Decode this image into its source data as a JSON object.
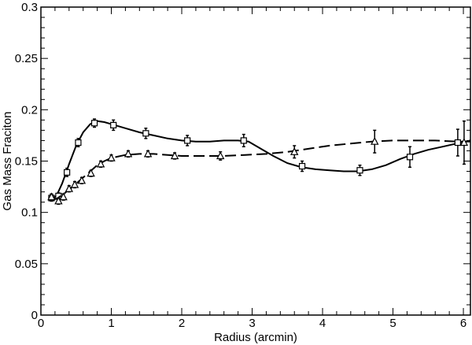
{
  "chart_data": {
    "type": "scatter",
    "title": "",
    "xlabel": "Radius (arcmin)",
    "ylabel": "Gas Mass Fraciton",
    "xlim": [
      0,
      6.1
    ],
    "ylim": [
      0,
      0.3
    ],
    "xticks": [
      "0",
      "1",
      "2",
      "3",
      "4",
      "5",
      "6"
    ],
    "yticks": [
      "0",
      "0.05",
      "0.1",
      "0.15",
      "0.2",
      "0.25",
      "0.3"
    ],
    "grid": false,
    "legend": "none",
    "series": [
      {
        "marker": "square",
        "line_style": "solid",
        "points": [
          {
            "x": 0.15,
            "y": 0.114,
            "err": 0.003
          },
          {
            "x": 0.25,
            "y": 0.116,
            "err": 0.003
          },
          {
            "x": 0.37,
            "y": 0.139,
            "err": 0.004
          },
          {
            "x": 0.53,
            "y": 0.168,
            "err": 0.004
          },
          {
            "x": 0.76,
            "y": 0.187,
            "err": 0.004
          },
          {
            "x": 1.03,
            "y": 0.185,
            "err": 0.005
          },
          {
            "x": 1.49,
            "y": 0.177,
            "err": 0.005
          },
          {
            "x": 2.08,
            "y": 0.17,
            "err": 0.005
          },
          {
            "x": 2.88,
            "y": 0.17,
            "err": 0.006
          },
          {
            "x": 3.71,
            "y": 0.145,
            "err": 0.005
          },
          {
            "x": 4.53,
            "y": 0.141,
            "err": 0.005
          },
          {
            "x": 5.24,
            "y": 0.154,
            "err": 0.01
          },
          {
            "x": 5.92,
            "y": 0.168,
            "err": 0.013
          }
        ],
        "curve": [
          [
            0.14,
            0.113
          ],
          [
            0.22,
            0.116
          ],
          [
            0.3,
            0.128
          ],
          [
            0.4,
            0.147
          ],
          [
            0.5,
            0.165
          ],
          [
            0.6,
            0.178
          ],
          [
            0.7,
            0.186
          ],
          [
            0.8,
            0.189
          ],
          [
            0.9,
            0.188
          ],
          [
            1.0,
            0.186
          ],
          [
            1.2,
            0.182
          ],
          [
            1.4,
            0.178
          ],
          [
            1.6,
            0.175
          ],
          [
            1.8,
            0.172
          ],
          [
            2.0,
            0.17
          ],
          [
            2.2,
            0.169
          ],
          [
            2.4,
            0.169
          ],
          [
            2.6,
            0.17
          ],
          [
            2.8,
            0.17
          ],
          [
            2.95,
            0.169
          ],
          [
            3.1,
            0.163
          ],
          [
            3.3,
            0.155
          ],
          [
            3.5,
            0.148
          ],
          [
            3.7,
            0.144
          ],
          [
            3.9,
            0.142
          ],
          [
            4.1,
            0.141
          ],
          [
            4.3,
            0.14
          ],
          [
            4.5,
            0.14
          ],
          [
            4.7,
            0.142
          ],
          [
            4.9,
            0.146
          ],
          [
            5.1,
            0.152
          ],
          [
            5.3,
            0.157
          ],
          [
            5.5,
            0.161
          ],
          [
            5.7,
            0.164
          ],
          [
            5.9,
            0.167
          ],
          [
            6.1,
            0.17
          ]
        ]
      },
      {
        "marker": "triangle",
        "line_style": "dashed",
        "points": [
          {
            "x": 0.15,
            "y": 0.115,
            "err": 0.003
          },
          {
            "x": 0.25,
            "y": 0.111,
            "err": 0.003
          },
          {
            "x": 0.32,
            "y": 0.115,
            "err": 0.003
          },
          {
            "x": 0.4,
            "y": 0.123,
            "err": 0.003
          },
          {
            "x": 0.48,
            "y": 0.127,
            "err": 0.003
          },
          {
            "x": 0.58,
            "y": 0.131,
            "err": 0.003
          },
          {
            "x": 0.71,
            "y": 0.138,
            "err": 0.003
          },
          {
            "x": 0.85,
            "y": 0.147,
            "err": 0.003
          },
          {
            "x": 1.0,
            "y": 0.153,
            "err": 0.003
          },
          {
            "x": 1.24,
            "y": 0.157,
            "err": 0.003
          },
          {
            "x": 1.52,
            "y": 0.157,
            "err": 0.003
          },
          {
            "x": 1.9,
            "y": 0.155,
            "err": 0.003
          },
          {
            "x": 2.55,
            "y": 0.155,
            "err": 0.004
          },
          {
            "x": 3.6,
            "y": 0.159,
            "err": 0.006
          },
          {
            "x": 4.74,
            "y": 0.169,
            "err": 0.011
          },
          {
            "x": 6.01,
            "y": 0.168,
            "err": 0.021
          }
        ],
        "curve": [
          [
            0.14,
            0.114
          ],
          [
            0.22,
            0.113
          ],
          [
            0.3,
            0.117
          ],
          [
            0.4,
            0.122
          ],
          [
            0.5,
            0.128
          ],
          [
            0.6,
            0.134
          ],
          [
            0.7,
            0.14
          ],
          [
            0.8,
            0.146
          ],
          [
            0.9,
            0.15
          ],
          [
            1.0,
            0.153
          ],
          [
            1.2,
            0.156
          ],
          [
            1.4,
            0.157
          ],
          [
            1.6,
            0.157
          ],
          [
            1.8,
            0.156
          ],
          [
            2.0,
            0.155
          ],
          [
            2.3,
            0.155
          ],
          [
            2.6,
            0.155
          ],
          [
            2.9,
            0.156
          ],
          [
            3.2,
            0.157
          ],
          [
            3.5,
            0.159
          ],
          [
            3.8,
            0.162
          ],
          [
            4.1,
            0.165
          ],
          [
            4.4,
            0.167
          ],
          [
            4.7,
            0.169
          ],
          [
            5.0,
            0.17
          ],
          [
            5.3,
            0.17
          ],
          [
            5.6,
            0.17
          ],
          [
            5.9,
            0.169
          ],
          [
            6.1,
            0.169
          ]
        ]
      }
    ]
  }
}
